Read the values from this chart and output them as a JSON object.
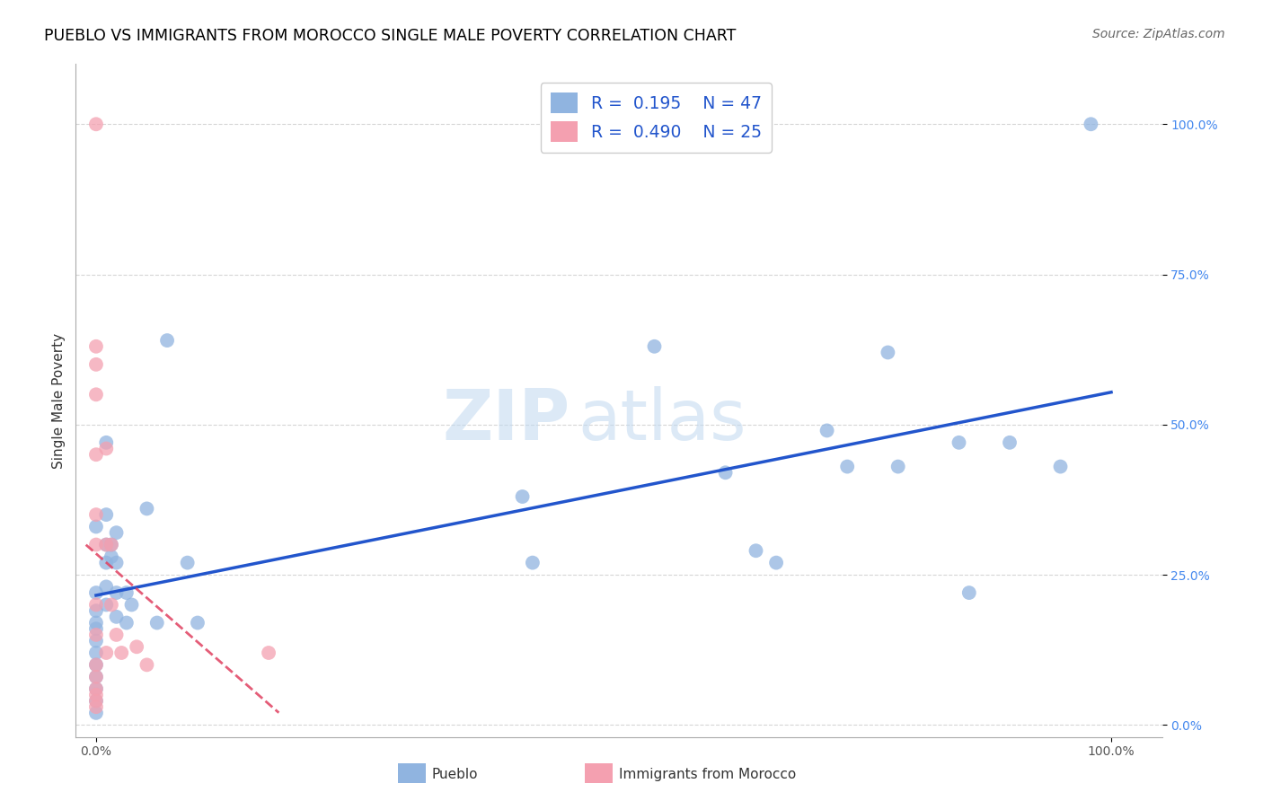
{
  "title": "PUEBLO VS IMMIGRANTS FROM MOROCCO SINGLE MALE POVERTY CORRELATION CHART",
  "source": "Source: ZipAtlas.com",
  "ylabel": "Single Male Poverty",
  "ytick_labels": [
    "0.0%",
    "25.0%",
    "50.0%",
    "75.0%",
    "100.0%"
  ],
  "ytick_values": [
    0.0,
    0.25,
    0.5,
    0.75,
    1.0
  ],
  "xtick_labels": [
    "0.0%",
    "100.0%"
  ],
  "xtick_values": [
    0.0,
    1.0
  ],
  "legend_blue_R": "0.195",
  "legend_blue_N": "47",
  "legend_pink_R": "0.490",
  "legend_pink_N": "25",
  "blue_color": "#90b4e0",
  "pink_color": "#f4a0b0",
  "trendline_blue_color": "#2255cc",
  "trendline_pink_color": "#e04060",
  "watermark_zip": "ZIP",
  "watermark_atlas": "atlas",
  "legend_label_blue": "Pueblo",
  "legend_label_pink": "Immigrants from Morocco",
  "pueblo_x": [
    0.0,
    0.0,
    0.0,
    0.0,
    0.0,
    0.0,
    0.0,
    0.0,
    0.0,
    0.0,
    0.0,
    0.0,
    0.01,
    0.01,
    0.01,
    0.01,
    0.01,
    0.01,
    0.015,
    0.015,
    0.02,
    0.02,
    0.02,
    0.02,
    0.03,
    0.03,
    0.035,
    0.05,
    0.06,
    0.07,
    0.09,
    0.1,
    0.42,
    0.43,
    0.55,
    0.62,
    0.65,
    0.67,
    0.72,
    0.74,
    0.78,
    0.79,
    0.85,
    0.86,
    0.9,
    0.95,
    0.98
  ],
  "pueblo_y": [
    0.33,
    0.22,
    0.19,
    0.17,
    0.16,
    0.14,
    0.12,
    0.1,
    0.08,
    0.06,
    0.04,
    0.02,
    0.47,
    0.35,
    0.3,
    0.27,
    0.23,
    0.2,
    0.3,
    0.28,
    0.32,
    0.27,
    0.22,
    0.18,
    0.22,
    0.17,
    0.2,
    0.36,
    0.17,
    0.64,
    0.27,
    0.17,
    0.38,
    0.27,
    0.63,
    0.42,
    0.29,
    0.27,
    0.49,
    0.43,
    0.62,
    0.43,
    0.47,
    0.22,
    0.47,
    0.43,
    1.0
  ],
  "morocco_x": [
    0.0,
    0.0,
    0.0,
    0.0,
    0.0,
    0.0,
    0.0,
    0.0,
    0.0,
    0.0,
    0.0,
    0.0,
    0.0,
    0.0,
    0.0,
    0.01,
    0.01,
    0.01,
    0.015,
    0.015,
    0.02,
    0.025,
    0.04,
    0.05,
    0.17
  ],
  "morocco_y": [
    1.0,
    0.63,
    0.6,
    0.55,
    0.45,
    0.35,
    0.3,
    0.2,
    0.15,
    0.1,
    0.08,
    0.06,
    0.05,
    0.04,
    0.03,
    0.46,
    0.3,
    0.12,
    0.3,
    0.2,
    0.15,
    0.12,
    0.13,
    0.1,
    0.12
  ]
}
